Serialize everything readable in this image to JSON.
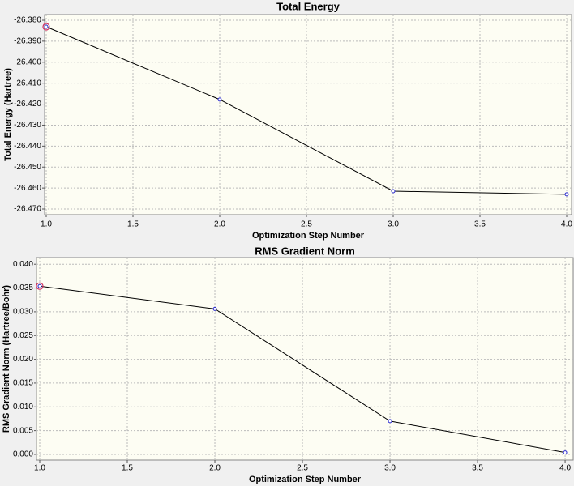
{
  "chart_data": [
    {
      "type": "line",
      "title": "Total Energy",
      "x_label": "Optimization Step Number",
      "y_label": "Total Energy (Hartree)",
      "x": [
        1,
        2,
        3,
        4
      ],
      "series": [
        {
          "name": "Total Energy",
          "color": "#000000",
          "marker_color": "#2a2ad0",
          "values": [
            -26.3831,
            -26.4178,
            -26.4615,
            -26.463
          ]
        }
      ],
      "xlim": [
        0.9907,
        4.028
      ],
      "xticks": [
        {
          "value": 1,
          "label": "1.0"
        },
        {
          "value": 1.5,
          "label": "1.5"
        },
        {
          "value": 2,
          "label": "2.0"
        },
        {
          "value": 2.5,
          "label": "2.5"
        },
        {
          "value": 3,
          "label": "3.0"
        },
        {
          "value": 3.5,
          "label": "3.5"
        },
        {
          "value": 4,
          "label": "4.0"
        }
      ],
      "ylim": [
        -26.4727,
        -26.3773
      ],
      "yticks": [
        {
          "value": -26.38,
          "label": "-26.380"
        },
        {
          "value": -26.39,
          "label": "-26.390"
        },
        {
          "value": -26.4,
          "label": "-26.400"
        },
        {
          "value": -26.41,
          "label": "-26.410"
        },
        {
          "value": -26.42,
          "label": "-26.420"
        },
        {
          "value": -26.43,
          "label": "-26.430"
        },
        {
          "value": -26.44,
          "label": "-26.440"
        },
        {
          "value": -26.45,
          "label": "-26.450"
        },
        {
          "value": -26.46,
          "label": "-26.460"
        },
        {
          "value": -26.47,
          "label": "-26.470"
        }
      ],
      "grid": true
    },
    {
      "type": "line",
      "title": "RMS Gradient Norm",
      "x_label": "Optimization Step Number",
      "y_label": "RMS Gradient Norm (Hartree/Bohr)",
      "x": [
        1,
        2,
        3,
        4
      ],
      "series": [
        {
          "name": "RMS Gradient Norm",
          "color": "#000000",
          "marker_color": "#2a2ad0",
          "values": [
            0.0354,
            0.0306,
            0.007,
            0.0004
          ]
        }
      ],
      "xlim": [
        0.9815,
        4.046
      ],
      "xticks": [
        {
          "value": 1,
          "label": "1.0"
        },
        {
          "value": 1.5,
          "label": "1.5"
        },
        {
          "value": 2,
          "label": "2.0"
        },
        {
          "value": 2.5,
          "label": "2.5"
        },
        {
          "value": 3,
          "label": "3.0"
        },
        {
          "value": 3.5,
          "label": "3.5"
        },
        {
          "value": 4,
          "label": "4.0"
        }
      ],
      "ylim": [
        -0.0012,
        0.0414
      ],
      "yticks": [
        {
          "value": 0,
          "label": "0.000"
        },
        {
          "value": 0.005,
          "label": "0.005"
        },
        {
          "value": 0.01,
          "label": "0.010"
        },
        {
          "value": 0.015,
          "label": "0.015"
        },
        {
          "value": 0.02,
          "label": "0.020"
        },
        {
          "value": 0.025,
          "label": "0.025"
        },
        {
          "value": 0.03,
          "label": "0.030"
        },
        {
          "value": 0.035,
          "label": "0.035"
        },
        {
          "value": 0.04,
          "label": "0.040"
        }
      ],
      "grid": true
    }
  ]
}
